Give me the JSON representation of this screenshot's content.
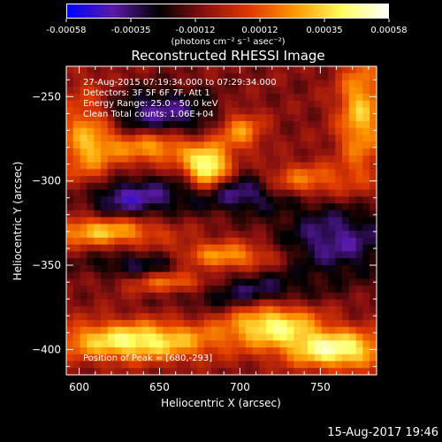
{
  "colorbar": {
    "ticks": [
      "-0.00058",
      "-0.00035",
      "-0.00012",
      "0.00012",
      "0.00035",
      "0.00058"
    ],
    "units_label": "(photons cm⁻² s⁻¹ asec⁻²)",
    "colors": [
      "#0000ff",
      "#5a1aa8",
      "#000000",
      "#8a1010",
      "#e03a00",
      "#ff9a00",
      "#ffff60",
      "#ffffff"
    ]
  },
  "chart_data": {
    "type": "heatmap",
    "title": "Reconstructed RHESSI Image",
    "xlabel": "Heliocentric X (arcsec)",
    "ylabel": "Heliocentric Y (arcsec)",
    "xlim": [
      592,
      785
    ],
    "ylim": [
      -415,
      -232
    ],
    "xticks": [
      600,
      650,
      700,
      750
    ],
    "yticks": [
      -250,
      -300,
      -350,
      -400
    ],
    "annotations": [
      "27-Aug-2015 07:19:34.000 to 07:29:34.000",
      "Detectors: 3F 5F 6F 7F, Att 1",
      "Energy Range: 25.0 - 50.0 keV",
      "Clean     Total counts: 1.06E+04"
    ],
    "peak_label": "Position of Peak = [680,-293]",
    "peak": [
      680,
      -293
    ],
    "sources": [
      {
        "x": 680,
        "y": -293,
        "amp": 1.0,
        "sx": 10,
        "sy": 9
      },
      {
        "x": 645,
        "y": -280,
        "amp": 0.55,
        "sx": 20,
        "sy": 7
      },
      {
        "x": 700,
        "y": -270,
        "amp": 0.5,
        "sx": 10,
        "sy": 8
      },
      {
        "x": 735,
        "y": -300,
        "amp": 0.55,
        "sx": 22,
        "sy": 7
      },
      {
        "x": 615,
        "y": -330,
        "amp": 0.6,
        "sx": 25,
        "sy": 6
      },
      {
        "x": 690,
        "y": -345,
        "amp": 0.55,
        "sx": 22,
        "sy": 6
      },
      {
        "x": 635,
        "y": -395,
        "amp": 0.8,
        "sx": 35,
        "sy": 8
      },
      {
        "x": 720,
        "y": -385,
        "amp": 0.75,
        "sx": 20,
        "sy": 9
      },
      {
        "x": 760,
        "y": -400,
        "amp": 0.85,
        "sx": 22,
        "sy": 8
      },
      {
        "x": 605,
        "y": -275,
        "amp": 0.55,
        "sx": 12,
        "sy": 20
      },
      {
        "x": 775,
        "y": -260,
        "amp": 0.6,
        "sx": 10,
        "sy": 25
      },
      {
        "x": 660,
        "y": -360,
        "amp": 0.55,
        "sx": 20,
        "sy": 5
      },
      {
        "x": 650,
        "y": -260,
        "amp": -0.45,
        "sx": 25,
        "sy": 10
      },
      {
        "x": 700,
        "y": -305,
        "amp": -0.55,
        "sx": 25,
        "sy": 9
      },
      {
        "x": 630,
        "y": -310,
        "amp": -0.5,
        "sx": 22,
        "sy": 8
      },
      {
        "x": 760,
        "y": -335,
        "amp": -0.45,
        "sx": 25,
        "sy": 15
      },
      {
        "x": 700,
        "y": -365,
        "amp": -0.4,
        "sx": 30,
        "sy": 8
      },
      {
        "x": 640,
        "y": -350,
        "amp": -0.35,
        "sx": 25,
        "sy": 6
      }
    ]
  },
  "footer": {
    "timestamp": "15-Aug-2017 19:46"
  }
}
